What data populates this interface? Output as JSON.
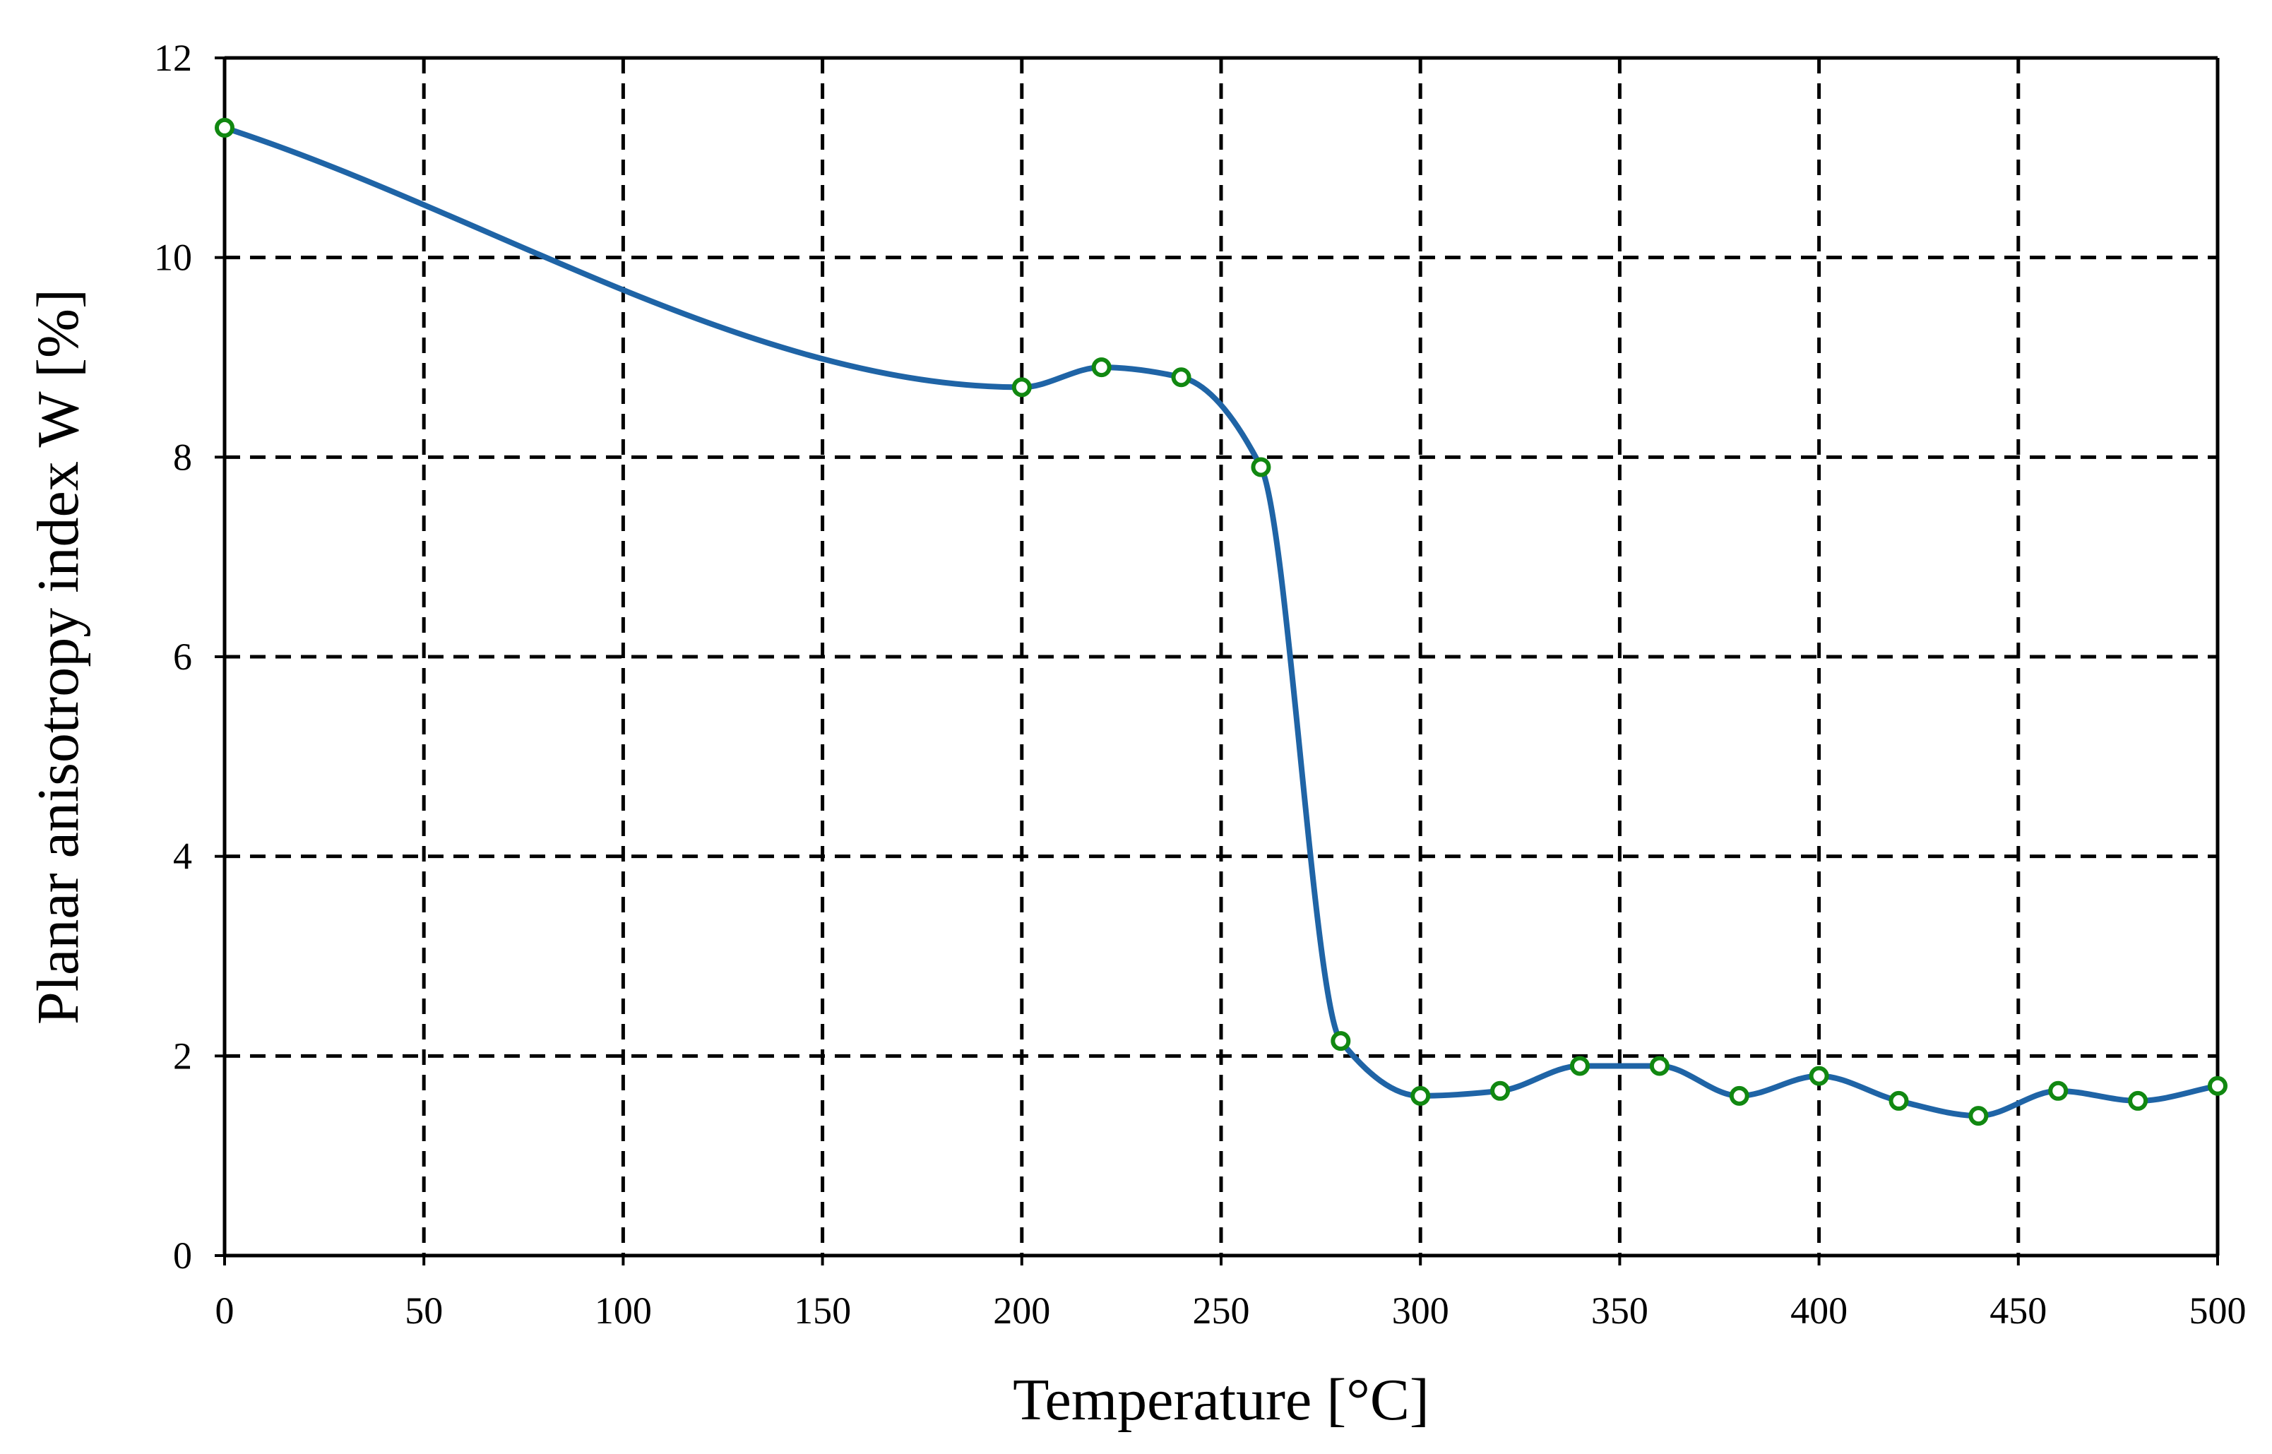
{
  "chart_data": {
    "type": "line",
    "title": "",
    "xlabel": "Temperature [°C]",
    "ylabel": "Planar anisotropy index W  [%]",
    "xlim": [
      0,
      500
    ],
    "ylim": [
      0,
      12
    ],
    "xticks": [
      0,
      50,
      100,
      150,
      200,
      250,
      300,
      350,
      400,
      450,
      500
    ],
    "yticks": [
      0,
      2,
      4,
      6,
      8,
      10,
      12
    ],
    "grid": true,
    "legend": "none",
    "series": [
      {
        "x": [
          0,
          200,
          220,
          240,
          260,
          280,
          300,
          320,
          340,
          360,
          380,
          400,
          420,
          440,
          460,
          480,
          500
        ],
        "y": [
          11.3,
          8.7,
          8.9,
          8.8,
          7.9,
          2.15,
          1.6,
          1.65,
          1.9,
          1.9,
          1.6,
          1.8,
          1.55,
          1.4,
          1.65,
          1.55,
          1.7
        ]
      }
    ],
    "colors": {
      "line": "#1f64a6",
      "marker_edge": "#118811",
      "marker_fill": "#ffffff",
      "grid": "#000000",
      "axis": "#000000"
    }
  }
}
